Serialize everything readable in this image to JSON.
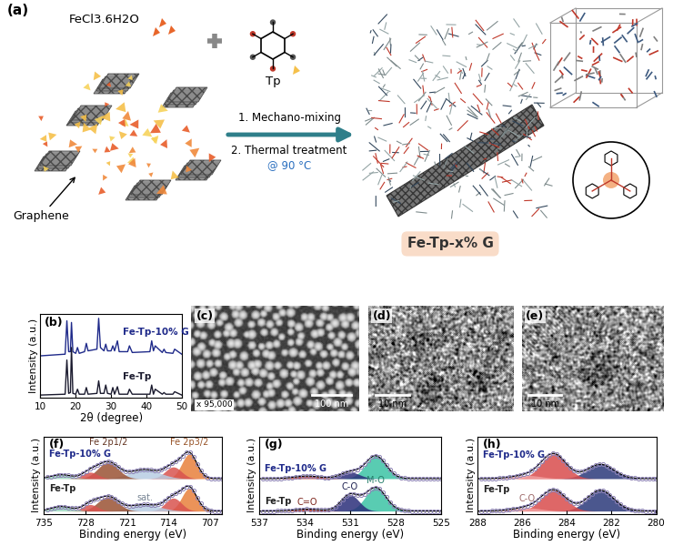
{
  "diagram": {
    "label": "(a)",
    "precursors": [
      "FeCl3.6H2O",
      "Tp"
    ],
    "support": "Graphene",
    "steps": [
      "1. Mechano-mixing",
      "2. Thermal treatment"
    ],
    "condition": "@ 90 °C",
    "product": "Fe-Tp-x% G"
  },
  "micrographs": [
    {
      "label": "(c)",
      "scale_bar": "100 nm",
      "magnification": "x 95,000"
    },
    {
      "label": "(d)",
      "scale_bar": "10 nm"
    },
    {
      "label": "(e)",
      "scale_bar": "10 nm"
    }
  ],
  "chart_data": [
    {
      "label": "(b)",
      "type": "line",
      "x_label": "2θ (degree)",
      "y_label": "Intensity (a.u.)",
      "x": [
        10,
        17,
        17.5,
        18,
        18.5,
        18.8,
        19.2,
        20,
        20.5,
        21,
        22.5,
        23,
        23.5,
        26,
        26.5,
        27,
        28,
        28.5,
        29,
        30,
        30.5,
        31,
        31.8,
        32.3,
        33,
        34.7,
        35.2,
        36,
        41,
        41.5,
        42,
        42.5,
        44.5,
        45,
        45.5,
        47.5,
        48,
        50
      ],
      "series": [
        {
          "name": "Fe-Tp-10% G",
          "color": "#1f2a8a",
          "values": [
            0.5,
            0.52,
            0.92,
            0.55,
            0.55,
            0.9,
            0.55,
            0.53,
            0.6,
            0.53,
            0.55,
            0.65,
            0.56,
            0.58,
            0.95,
            0.6,
            0.56,
            0.64,
            0.56,
            0.56,
            0.62,
            0.56,
            0.68,
            0.55,
            0.55,
            0.55,
            0.62,
            0.54,
            0.55,
            0.68,
            0.56,
            0.62,
            0.54,
            0.58,
            0.54,
            0.53,
            0.58,
            0.52
          ]
        },
        {
          "name": "Fe-Tp",
          "color": "#1a1a2e",
          "values": [
            0.03,
            0.04,
            0.45,
            0.05,
            0.06,
            0.6,
            0.05,
            0.04,
            0.1,
            0.04,
            0.04,
            0.12,
            0.04,
            0.05,
            0.2,
            0.05,
            0.05,
            0.15,
            0.05,
            0.04,
            0.12,
            0.04,
            0.13,
            0.04,
            0.04,
            0.04,
            0.1,
            0.04,
            0.04,
            0.15,
            0.04,
            0.1,
            0.04,
            0.06,
            0.04,
            0.04,
            0.07,
            0.03
          ]
        }
      ],
      "xlim": [
        10,
        50
      ],
      "xticks": [
        10,
        20,
        30,
        40,
        50
      ],
      "ylim": [
        0,
        1
      ],
      "tick_labels": "x"
    },
    {
      "label": "(f)",
      "type": "area",
      "x_label": "Binding energy (eV)",
      "y_label": "Intensity (a.u.)",
      "marker": "o",
      "xlim": [
        735,
        705
      ],
      "xticks": [
        735,
        728,
        721,
        714,
        707
      ],
      "ylim": [
        0,
        1.2
      ],
      "tick_labels": "x",
      "spectra": [
        {
          "name": "Fe-Tp-10% G",
          "color": "#1f2a8a",
          "baseline": 0.55,
          "peaks": [
            {
              "center": 710.5,
              "height": 0.38,
              "fwhm": 3.0,
              "color": "#e8803c",
              "label": "Fe 2p3/2"
            },
            {
              "center": 713.2,
              "height": 0.18,
              "fwhm": 3.2,
              "color": "#d9534f"
            },
            {
              "center": 718.0,
              "height": 0.14,
              "fwhm": 6.0,
              "color": "#b8cde3"
            },
            {
              "center": 724.2,
              "height": 0.25,
              "fwhm": 4.0,
              "color": "#9a5234",
              "label": "Fe 2p1/2"
            },
            {
              "center": 727.2,
              "height": 0.1,
              "fwhm": 3.0,
              "color": "#d9534f"
            },
            {
              "center": 732.0,
              "height": 0.06,
              "fwhm": 4.0,
              "color": "#9fdcc1"
            }
          ]
        },
        {
          "name": "Fe-Tp",
          "color": "#222222",
          "baseline": 0.05,
          "peaks": [
            {
              "center": 710.5,
              "height": 0.35,
              "fwhm": 3.0,
              "color": "#e8803c"
            },
            {
              "center": 713.2,
              "height": 0.2,
              "fwhm": 3.2,
              "color": "#d9534f"
            },
            {
              "center": 718.0,
              "height": 0.1,
              "fwhm": 6.0,
              "color": "#b8cde3",
              "label": "sat."
            },
            {
              "center": 724.2,
              "height": 0.22,
              "fwhm": 4.0,
              "color": "#9a5234"
            },
            {
              "center": 727.2,
              "height": 0.1,
              "fwhm": 3.0,
              "color": "#d9534f"
            },
            {
              "center": 732.0,
              "height": 0.07,
              "fwhm": 4.0,
              "color": "#9fdcc1"
            }
          ]
        }
      ]
    },
    {
      "label": "(g)",
      "type": "area",
      "x_label": "Binding energy (eV)",
      "y_label": "Intensity (a.u.)",
      "marker": "o",
      "xlim": [
        537,
        525
      ],
      "xticks": [
        537,
        534,
        531,
        528,
        525
      ],
      "ylim": [
        0,
        1.2
      ],
      "tick_labels": "x",
      "spectra": [
        {
          "name": "Fe-Tp-10% G",
          "color": "#1f2a8a",
          "baseline": 0.55,
          "peaks": [
            {
              "center": 529.3,
              "height": 0.35,
              "fwhm": 1.6,
              "color": "#3cc3a5"
            },
            {
              "center": 531.0,
              "height": 0.1,
              "fwhm": 1.5,
              "color": "#2b2f7a"
            },
            {
              "center": 533.8,
              "height": 0.04,
              "fwhm": 2.0,
              "color": "#c0392b"
            }
          ]
        },
        {
          "name": "Fe-Tp",
          "color": "#222222",
          "baseline": 0.05,
          "peaks": [
            {
              "center": 529.3,
              "height": 0.36,
              "fwhm": 1.6,
              "color": "#3cc3a5",
              "label": "M-O"
            },
            {
              "center": 531.0,
              "height": 0.25,
              "fwhm": 1.4,
              "color": "#2b2f7a",
              "label": "C-O"
            },
            {
              "center": 533.8,
              "height": 0.03,
              "fwhm": 2.0,
              "color": "#c0392b",
              "label": "C=O"
            }
          ]
        }
      ]
    },
    {
      "label": "(h)",
      "type": "area",
      "x_label": "Binding energy (eV)",
      "y_label": "Intensity (a.u.)",
      "marker": "o",
      "xlim": [
        288,
        280
      ],
      "xticks": [
        288,
        286,
        284,
        282,
        280
      ],
      "ylim": [
        0,
        1.2
      ],
      "tick_labels": "x",
      "spectra": [
        {
          "name": "Fe-Tp-10% G",
          "color": "#1f2a8a",
          "baseline": 0.55,
          "peaks": [
            {
              "center": 282.5,
              "height": 0.22,
              "fwhm": 1.4,
              "color": "#2b3a7a"
            },
            {
              "center": 284.6,
              "height": 0.38,
              "fwhm": 1.3,
              "color": "#d94c4c"
            },
            {
              "center": 285.8,
              "height": 0.05,
              "fwhm": 1.5,
              "color": "#f2a0a0"
            }
          ]
        },
        {
          "name": "Fe-Tp",
          "color": "#222222",
          "baseline": 0.05,
          "peaks": [
            {
              "center": 282.5,
              "height": 0.32,
              "fwhm": 1.4,
              "color": "#2b3a7a"
            },
            {
              "center": 284.6,
              "height": 0.32,
              "fwhm": 1.3,
              "color": "#d94c4c"
            },
            {
              "center": 285.8,
              "height": 0.05,
              "fwhm": 1.5,
              "color": "#f2a0a0",
              "label": "C-O"
            }
          ]
        }
      ]
    }
  ]
}
